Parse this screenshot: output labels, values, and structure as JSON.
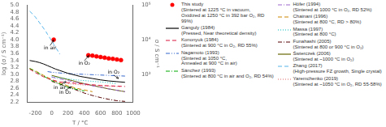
{
  "chart_data": {
    "type": "line",
    "xlabel": "T / °C",
    "ylabel": "log (σ / S cm⁻¹)",
    "y2label": "σ / S cm⁻¹",
    "xlim": [
      -300,
      1000
    ],
    "xticks": [
      -200,
      0,
      200,
      400,
      600,
      800,
      1000
    ],
    "ylim": [
      2.2,
      5.0
    ],
    "yticks": [
      2.2,
      2.4,
      2.6,
      2.8,
      {
        "value": 3,
        "label": "3.0"
      },
      3.2,
      3.4,
      3.6,
      3.8,
      {
        "value": 4,
        "label": "4.0"
      },
      4.2,
      4.4,
      4.6,
      4.8,
      {
        "value": 5,
        "label": "5.0"
      }
    ],
    "y2lim": [
      2.2,
      5.0
    ],
    "y2ticks": [
      {
        "value": 3,
        "label": "10³"
      },
      {
        "value": 4,
        "label": "10⁴"
      },
      {
        "value": 5,
        "label": "10⁵"
      }
    ],
    "grid": false,
    "legend": "right",
    "series": [
      {
        "name": "This study\n(Sintered at 1225 °C in vacuum,\nOxidized at 1250 °C in 392 bar O₂, RD 99%)",
        "type": "scatter",
        "marker": "circle",
        "color": "#ff0000",
        "x": [
          25,
          450,
          500,
          550,
          600,
          650,
          700,
          750,
          800,
          850
        ],
        "values": [
          4.0,
          3.55,
          3.54,
          3.52,
          3.5,
          3.48,
          3.46,
          3.45,
          3.43,
          3.41
        ]
      },
      {
        "name": "Ganguly (1984)\n(Pressed, Near theoretical density)",
        "type": "line",
        "line_style": "solid",
        "color": "#000000",
        "x": [
          -270,
          -200,
          -150,
          -100,
          -50,
          0,
          50,
          100,
          150,
          200,
          250,
          300,
          350,
          400,
          500,
          600,
          700,
          800,
          900
        ],
        "values": [
          3.4,
          3.37,
          3.34,
          3.3,
          3.25,
          3.2,
          3.15,
          3.11,
          3.07,
          3.03,
          3.0,
          2.97,
          2.94,
          2.92,
          2.88,
          2.84,
          2.81,
          2.79,
          2.77
        ]
      },
      {
        "name": "Kononyuk (1984)\n(Sintered at 900 °C in O₂, RD 55%)",
        "type": "line",
        "line_style": "dashed",
        "color": "#dc143c",
        "x": [
          -270,
          -200,
          -100,
          0,
          100,
          200,
          300,
          400,
          500,
          600,
          700,
          800,
          900
        ],
        "values": [
          3.15,
          3.05,
          2.93,
          2.84,
          2.78,
          2.76,
          2.74,
          2.72,
          2.7,
          2.68,
          2.67,
          2.66,
          2.65
        ]
      },
      {
        "name": "Nagamoto (1993)\n(Sintered at 1050 °C,\nAnnealed at 900 °C in air)",
        "type": "line",
        "line_style": "dashdotdot",
        "color": "#3366cc",
        "x": [
          -50,
          0,
          100,
          200,
          300,
          400,
          500,
          600,
          700,
          800,
          900
        ],
        "values": [
          3.08,
          3.06,
          3.04,
          3.02,
          3.01,
          3.0,
          2.99,
          2.98,
          2.97,
          2.96,
          2.95
        ]
      },
      {
        "name": "Sánchez (1993)\n(Sintered at 800 °C in air and O₂, RD 54%)",
        "type": "line",
        "line_style": "dashdot",
        "color": "#00aa00",
        "x": [
          -270,
          -200,
          -100,
          0,
          100,
          200,
          300,
          400
        ],
        "values": [
          3.17,
          3.08,
          2.95,
          2.82,
          2.72,
          2.63,
          2.57,
          2.52
        ]
      },
      {
        "name": "Höfer (1994)\n(Sintered at 1000 °C in O₂, RD 52%)",
        "type": "line",
        "line_style": "dashdot",
        "color": "#9966cc",
        "x": [
          0,
          100,
          200,
          300,
          400,
          500,
          600,
          700,
          800,
          900
        ],
        "values": [
          2.92,
          2.87,
          2.82,
          2.77,
          2.72,
          2.67,
          2.63,
          2.58,
          2.54,
          2.5
        ]
      },
      {
        "name": "Chainani (1996)\n(Sintered at 800 °C, RD > 80%)",
        "type": "line",
        "line_style": "dashed",
        "color": "#cc8800",
        "x": [
          -270,
          -200,
          -100,
          0,
          100,
          200,
          300,
          400,
          500
        ],
        "values": [
          3.17,
          3.1,
          2.97,
          2.85,
          2.75,
          2.67,
          2.6,
          2.55,
          2.5
        ]
      },
      {
        "name": "Massa (1997)\n(Sintered at 800 °C)",
        "type": "line",
        "line_style": "dotted",
        "color": "#00bbbb",
        "x": [
          0,
          100,
          200,
          300,
          400,
          500,
          600,
          700,
          800
        ],
        "values": [
          2.93,
          2.9,
          2.87,
          2.84,
          2.82,
          2.8,
          2.78,
          2.76,
          2.73
        ]
      },
      {
        "name": "Funahashi (2005)\n(Sintered at 800 or 900 °C in O₂)",
        "type": "line",
        "line_style": "dashdot",
        "color": "#550000",
        "x": [
          0,
          100,
          200,
          300,
          400,
          500,
          600,
          700,
          800,
          900
        ],
        "values": [
          2.8,
          2.72,
          2.63,
          2.55,
          2.46,
          2.39,
          2.33,
          2.28,
          2.24,
          2.22
        ]
      },
      {
        "name": "Świerczek (2006)\n(Sintered at ~1000 °C in O₂)",
        "type": "line",
        "line_style": "solid",
        "color": "#666600",
        "x": [
          0,
          100,
          200,
          300,
          400,
          500,
          600,
          700,
          800,
          900
        ],
        "values": [
          2.97,
          2.91,
          2.85,
          2.79,
          2.73,
          2.68,
          2.63,
          2.58,
          2.54,
          2.5
        ]
      },
      {
        "name": "Zhang (2017)\n(High-pressure FZ growth, Single crystal)",
        "type": "line",
        "line_style": "dashed",
        "color": "#56b4e9",
        "x": [
          -270,
          -230,
          -200,
          -170,
          -150,
          -120,
          -100,
          -70,
          -50,
          -20,
          0,
          30,
          50,
          80,
          100
        ],
        "values": [
          4.82,
          4.73,
          4.65,
          4.56,
          4.49,
          4.4,
          4.33,
          4.23,
          4.15,
          4.04,
          3.96,
          3.85,
          3.77,
          3.66,
          3.58
        ]
      },
      {
        "name": "Yaremchenko (2019)\n(Sintered at ~1050 °C in O₂, RD 55-58%)",
        "type": "line",
        "line_style": "dotted",
        "color": "#dd6666",
        "x": [
          200,
          300,
          400,
          500,
          600,
          700,
          800,
          850
        ],
        "values": [
          2.73,
          2.71,
          2.69,
          2.68,
          2.67,
          2.66,
          2.65,
          2.64
        ]
      }
    ],
    "annotations": [
      {
        "text": "in air",
        "x": 25,
        "y": 3.99,
        "text_x": -20,
        "text_y": 3.83
      },
      {
        "text": "in O₂",
        "x": 455,
        "y": 3.54,
        "text_x": 400,
        "text_y": 3.39
      },
      {
        "text": "in air",
        "x": 175,
        "y": 2.79,
        "text_x": 100,
        "text_y": 2.68
      },
      {
        "text": "in O₂",
        "x": 240,
        "y": 2.64,
        "text_x": 165,
        "text_y": 2.54
      },
      {
        "text": "in O₂",
        "x": 820,
        "y": 2.88,
        "text_x": 760,
        "text_y": 2.98
      }
    ]
  }
}
